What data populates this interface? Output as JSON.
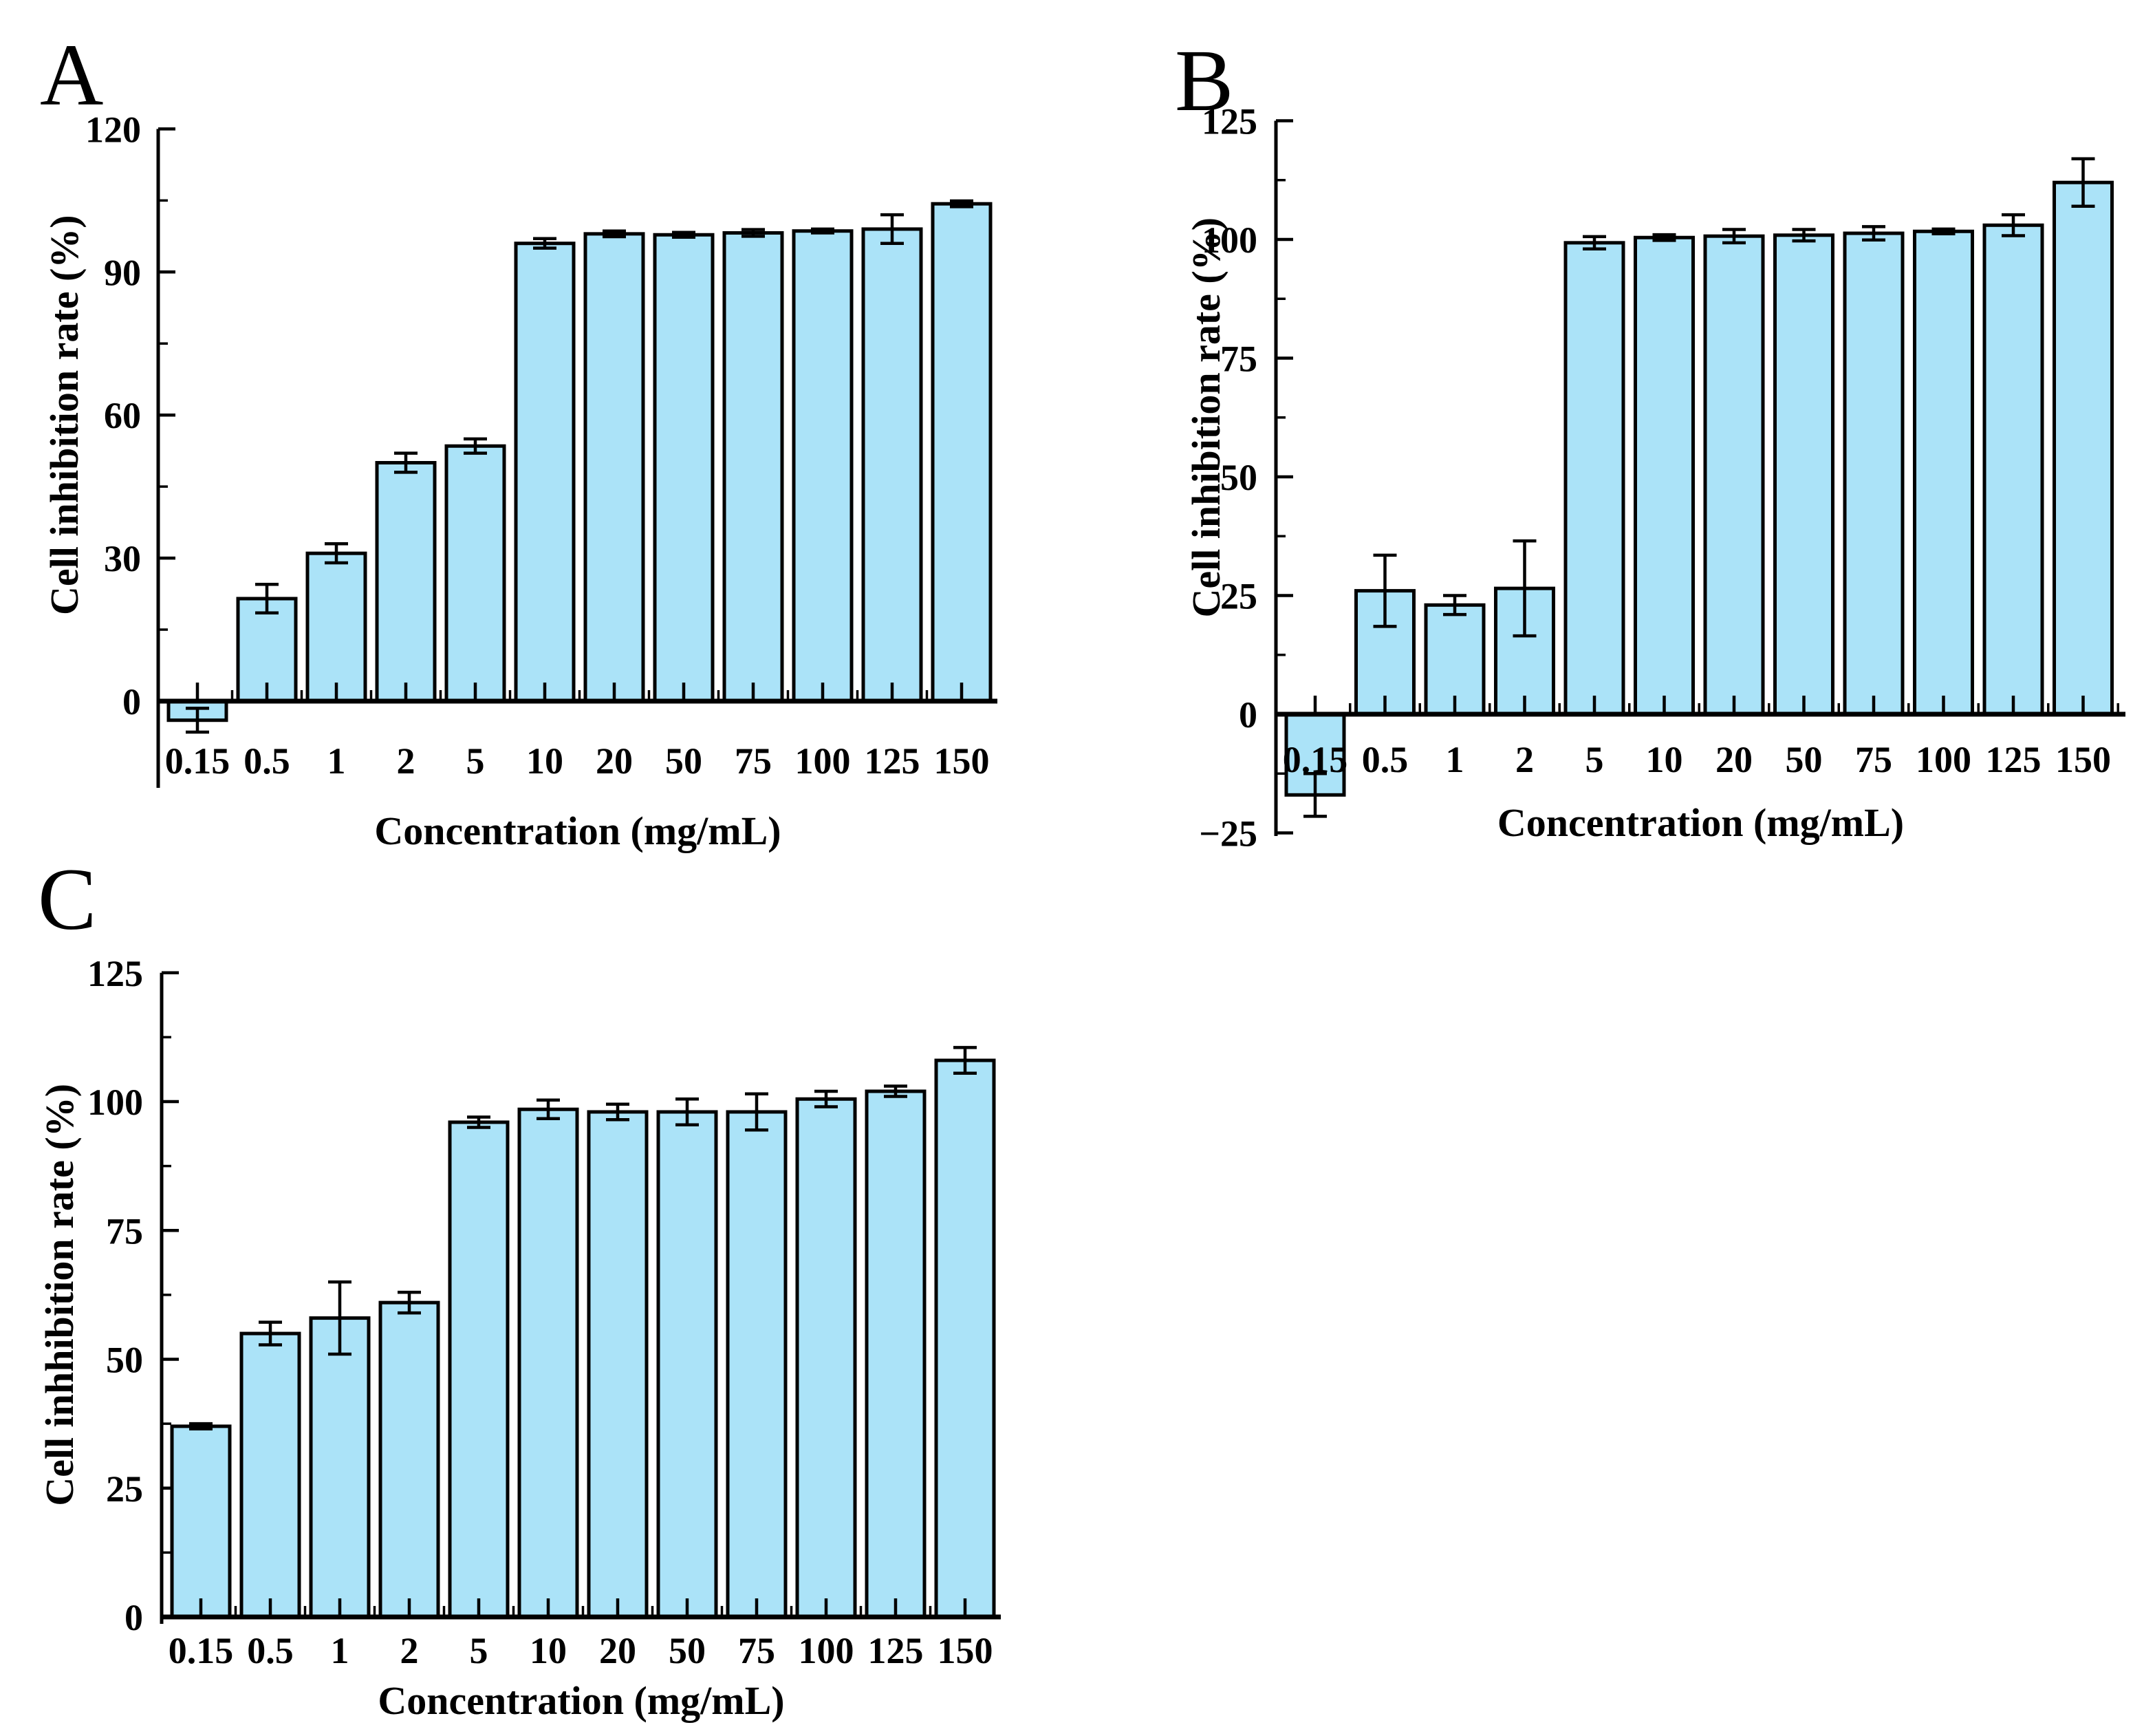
{
  "figure": {
    "background": "#ffffff",
    "bar_fill": "#abe3f8",
    "bar_stroke": "#000000",
    "axis_color": "#000000"
  },
  "chart_data": [
    {
      "id": "A",
      "type": "bar",
      "panel_label": "A",
      "xlabel": "Concentration (mg/mL)",
      "ylabel": "Cell inhibition rate (%)",
      "categories": [
        "0.15",
        "0.5",
        "1",
        "2",
        "5",
        "10",
        "20",
        "50",
        "75",
        "100",
        "125",
        "150"
      ],
      "values": [
        -4,
        21.5,
        31,
        50,
        53.5,
        96,
        98,
        97.8,
        98.2,
        98.6,
        99,
        104.3
      ],
      "errors": [
        2.5,
        3,
        2,
        2,
        1.5,
        1,
        0.6,
        0.5,
        0.7,
        0.4,
        3,
        0.6
      ],
      "ylim": [
        0,
        120
      ],
      "yticks": [
        0,
        30,
        60,
        90,
        120
      ],
      "ytick_labels": [
        "0",
        "30",
        "60",
        "90",
        "120"
      ],
      "minor_tick_step": 15,
      "grid": false,
      "legend": null,
      "error_bars": true
    },
    {
      "id": "B",
      "type": "bar",
      "panel_label": "B",
      "xlabel": "Concentration (mg/mL)",
      "ylabel": "Cell inhibition rate (%)",
      "categories": [
        "0.15",
        "0.5",
        "1",
        "2",
        "5",
        "10",
        "20",
        "50",
        "75",
        "100",
        "125",
        "150"
      ],
      "values": [
        -17,
        26,
        23,
        26.5,
        99.3,
        100.4,
        100.7,
        100.9,
        101.3,
        101.7,
        103,
        112
      ],
      "errors": [
        4.5,
        7.5,
        2,
        10,
        1.3,
        0.6,
        1.4,
        1.2,
        1.4,
        0.5,
        2.2,
        5
      ],
      "ylim": [
        -25,
        125
      ],
      "yticks": [
        -25,
        0,
        25,
        50,
        75,
        100,
        125
      ],
      "ytick_labels": [
        "−25",
        "0",
        "25",
        "50",
        "75",
        "100",
        "125"
      ],
      "minor_tick_step": 12.5,
      "grid": false,
      "legend": null,
      "error_bars": true
    },
    {
      "id": "C",
      "type": "bar",
      "panel_label": "C",
      "xlabel": "Concentration (mg/mL)",
      "ylabel": "Cell inhhibition rate (%)",
      "categories": [
        "0.15",
        "0.5",
        "1",
        "2",
        "5",
        "10",
        "20",
        "50",
        "75",
        "100",
        "125",
        "150"
      ],
      "values": [
        37,
        55,
        58,
        61,
        96,
        98.5,
        98,
        98,
        98,
        100.5,
        102,
        108
      ],
      "errors": [
        0.5,
        2.2,
        7,
        2,
        1,
        1.8,
        1.5,
        2.5,
        3.5,
        1.5,
        1,
        2.5
      ],
      "ylim": [
        0,
        125
      ],
      "yticks": [
        0,
        25,
        50,
        75,
        100,
        125
      ],
      "ytick_labels": [
        "0",
        "25",
        "50",
        "75",
        "100",
        "125"
      ],
      "minor_tick_step": 12.5,
      "grid": false,
      "legend": null,
      "error_bars": true
    }
  ]
}
